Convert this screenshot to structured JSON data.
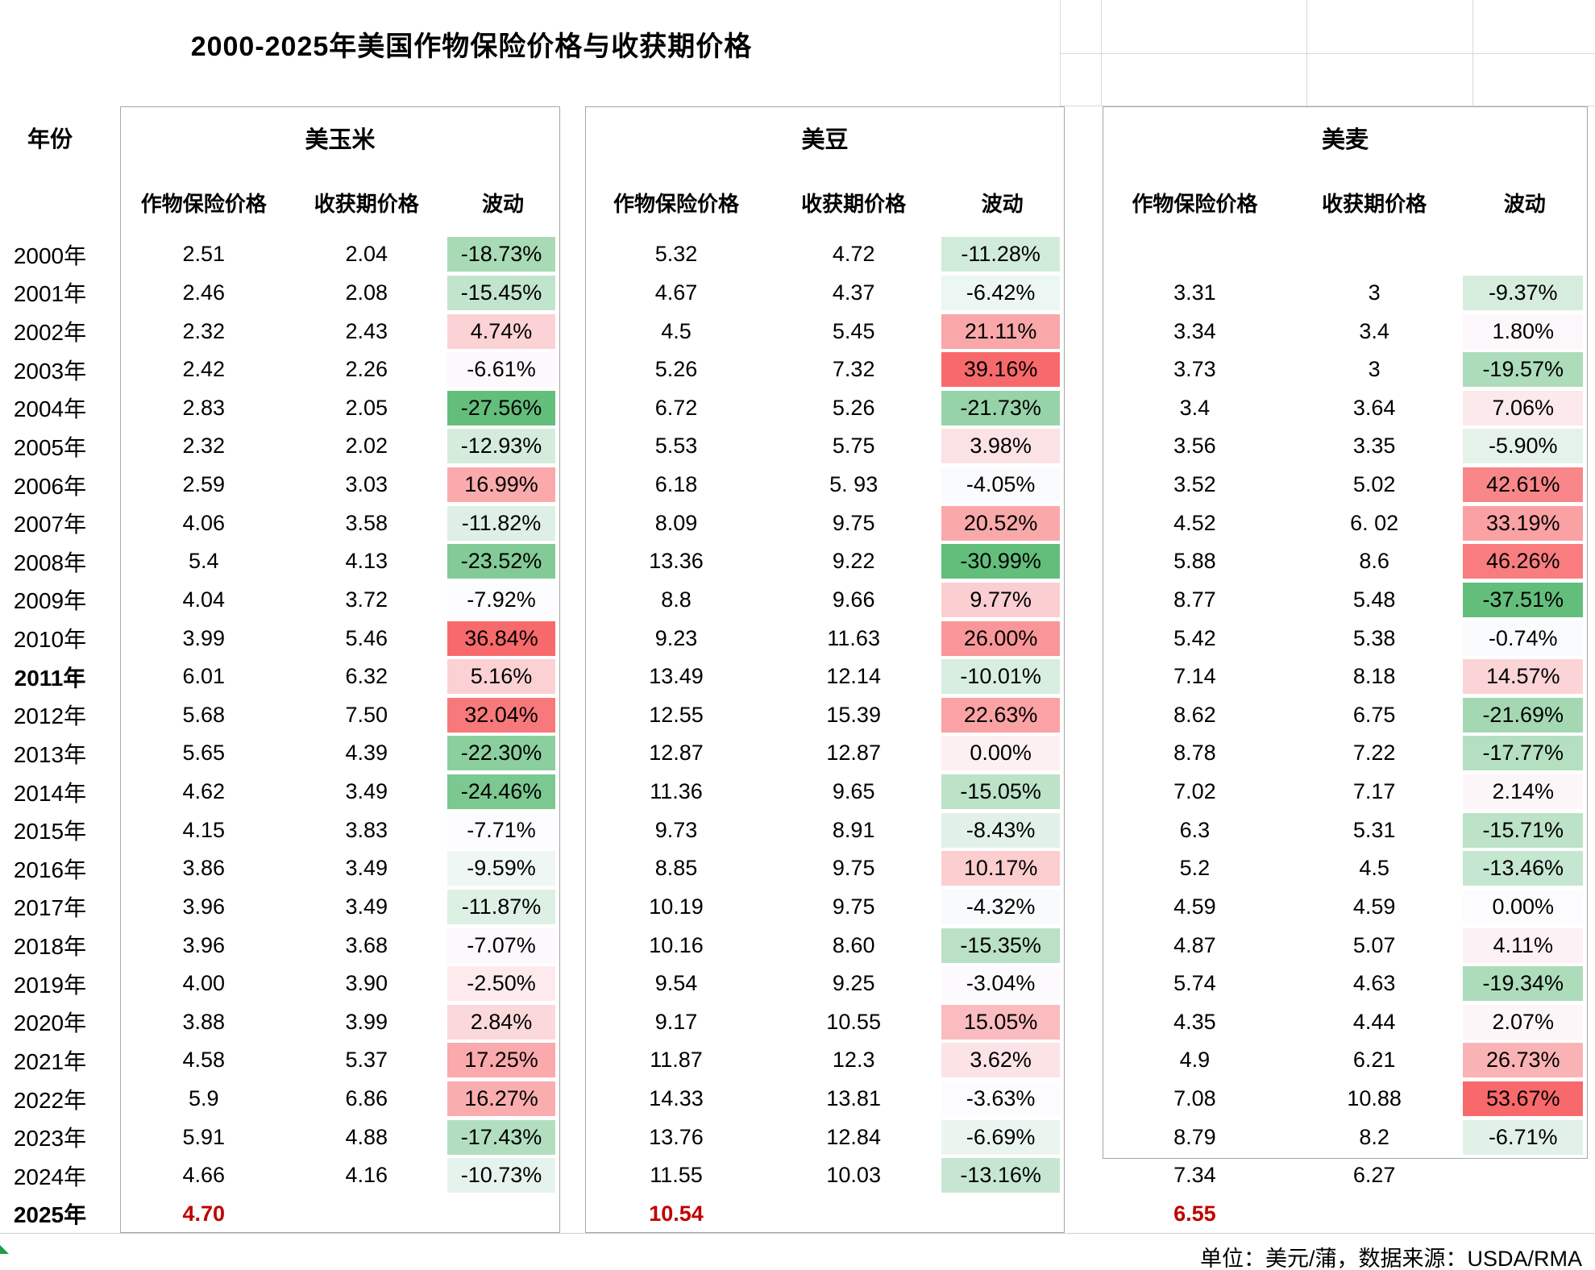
{
  "chart_data": {
    "type": "table",
    "title": "2000-2025年美国作物保险价格与收获期价格",
    "footer_note": "单位：美元/蒲，数据来源：USDA/RMA",
    "year_header": "年份",
    "years": [
      "2000年",
      "2001年",
      "2002年",
      "2003年",
      "2004年",
      "2005年",
      "2006年",
      "2007年",
      "2008年",
      "2009年",
      "2010年",
      "2011年",
      "2012年",
      "2013年",
      "2014年",
      "2015年",
      "2016年",
      "2017年",
      "2018年",
      "2019年",
      "2020年",
      "2021年",
      "2022年",
      "2023年",
      "2024年",
      "2025年"
    ],
    "scale": {
      "min": "#63BE7B",
      "mid": "#FCFCFF",
      "max": "#F8696B"
    },
    "styles": {
      "bold_year_rows": [
        11,
        25
      ],
      "highlight_row": 25,
      "highlight_color": "#C00000",
      "border_gray": "#A6A6A6",
      "gridline_gray": "#D9D9D9"
    },
    "groups": [
      {
        "name": "美玉米",
        "columns": [
          "作物保险价格",
          "收获期价格",
          "波动"
        ],
        "insurance": [
          "2.51",
          "2.46",
          "2.32",
          "2.42",
          "2.83",
          "2.32",
          "2.59",
          "4.06",
          "5.4",
          "4.04",
          "3.99",
          "6.01",
          "5.68",
          "5.65",
          "4.62",
          "4.15",
          "3.86",
          "3.96",
          "3.96",
          "4.00",
          "3.88",
          "4.58",
          "5.9",
          "5.91",
          "4.66",
          "4.70"
        ],
        "harvest": [
          "2.04",
          "2.08",
          "2.43",
          "2.26",
          "2.05",
          "2.02",
          "3.03",
          "3.58",
          "4.13",
          "3.72",
          "5.46",
          "6.32",
          "7.50",
          "4.39",
          "3.49",
          "3.83",
          "3.49",
          "3.49",
          "3.68",
          "3.90",
          "3.99",
          "5.37",
          "6.86",
          "4.88",
          "4.16",
          ""
        ],
        "volatility": [
          "-18.73%",
          "-15.45%",
          "4.74%",
          "-6.61%",
          "-27.56%",
          "-12.93%",
          "16.99%",
          "-11.82%",
          "-23.52%",
          "-7.92%",
          "36.84%",
          "5.16%",
          "32.04%",
          "-22.30%",
          "-24.46%",
          "-7.71%",
          "-9.59%",
          "-11.87%",
          "-7.07%",
          "-2.50%",
          "2.84%",
          "17.25%",
          "16.27%",
          "-17.43%",
          "-10.73%",
          ""
        ]
      },
      {
        "name": "美豆",
        "columns": [
          "作物保险价格",
          "收获期价格",
          "波动"
        ],
        "insurance": [
          "5.32",
          "4.67",
          "4.5",
          "5.26",
          "6.72",
          "5.53",
          "6.18",
          "8.09",
          "13.36",
          "8.8",
          "9.23",
          "13.49",
          "12.55",
          "12.87",
          "11.36",
          "9.73",
          "8.85",
          "10.19",
          "10.16",
          "9.54",
          "9.17",
          "11.87",
          "14.33",
          "13.76",
          "11.55",
          "10.54"
        ],
        "harvest": [
          "4.72",
          "4.37",
          "5.45",
          "7.32",
          "5.26",
          "5.75",
          "5. 93",
          "9.75",
          "9.22",
          "9.66",
          "11.63",
          "12.14",
          "15.39",
          "12.87",
          "9.65",
          "8.91",
          "9.75",
          "9.75",
          "8.60",
          "9.25",
          "10.55",
          "12.3",
          "13.81",
          "12.84",
          "10.03",
          ""
        ],
        "volatility": [
          "-11.28%",
          "-6.42%",
          "21.11%",
          "39.16%",
          "-21.73%",
          "3.98%",
          "-4.05%",
          "20.52%",
          "-30.99%",
          "9.77%",
          "26.00%",
          "-10.01%",
          "22.63%",
          "0.00%",
          "-15.05%",
          "-8.43%",
          "10.17%",
          "-4.32%",
          "-15.35%",
          "-3.04%",
          "15.05%",
          "3.62%",
          "-3.63%",
          "-6.69%",
          "-13.16%",
          ""
        ]
      },
      {
        "name": "美麦",
        "columns": [
          "作物保险价格",
          "收获期价格",
          "波动"
        ],
        "insurance": [
          "",
          "3.31",
          "3.34",
          "3.73",
          "3.4",
          "3.56",
          "3.52",
          "4.52",
          "5.88",
          "8.77",
          "5.42",
          "7.14",
          "8.62",
          "8.78",
          "7.02",
          "6.3",
          "5.2",
          "4.59",
          "4.87",
          "5.74",
          "4.35",
          "4.9",
          "7.08",
          "8.79",
          "7.34",
          "6.55"
        ],
        "harvest": [
          "",
          "3",
          "3.4",
          "3",
          "3.64",
          "3.35",
          "5.02",
          "6. 02",
          "8.6",
          "5.48",
          "5.38",
          "8.18",
          "6.75",
          "7.22",
          "7.17",
          "5.31",
          "4.5",
          "4.59",
          "5.07",
          "4.63",
          "4.44",
          "6.21",
          "10.88",
          "8.2",
          "6.27",
          ""
        ],
        "volatility": [
          "",
          "-9.37%",
          "1.80%",
          "-19.57%",
          "7.06%",
          "-5.90%",
          "42.61%",
          "33.19%",
          "46.26%",
          "-37.51%",
          "-0.74%",
          "14.57%",
          "-21.69%",
          "-17.77%",
          "2.14%",
          "-15.71%",
          "-13.46%",
          "0.00%",
          "4.11%",
          "-19.34%",
          "2.07%",
          "26.73%",
          "53.67%",
          "-6.71%",
          "",
          ""
        ]
      }
    ]
  }
}
